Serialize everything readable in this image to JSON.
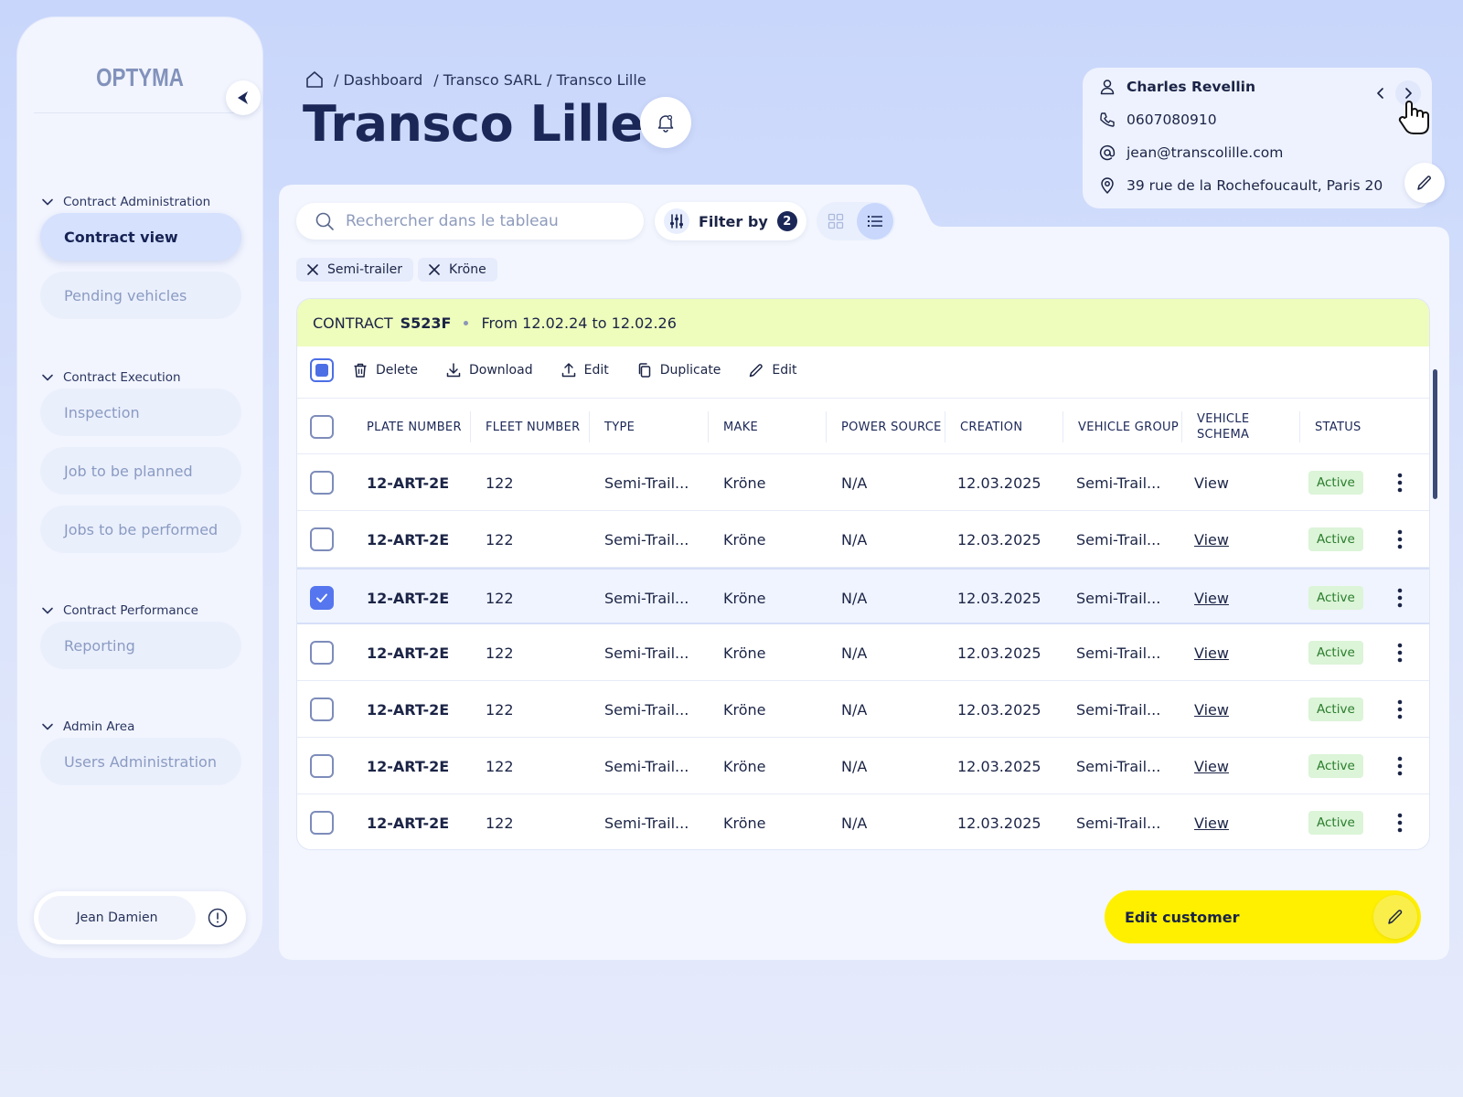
{
  "app": {
    "logo": "OPTYMA"
  },
  "sidebar": {
    "sections": [
      {
        "title": "Contract Administration",
        "items": [
          "Contract view",
          "Pending vehicles"
        ]
      },
      {
        "title": "Contract Execution",
        "items": [
          "Inspection",
          "Job to be planned",
          "Jobs to be performed"
        ]
      },
      {
        "title": "Contract Performance",
        "items": [
          "Reporting"
        ]
      },
      {
        "title": "Admin Area",
        "items": [
          "Users Administration"
        ]
      }
    ],
    "active_item": "Contract view",
    "user": "Jean Damien"
  },
  "breadcrumb": {
    "items": [
      "/ Dashboard",
      "/ Transco SARL",
      "/ Transco Lille"
    ]
  },
  "page": {
    "title": "Transco Lille"
  },
  "contact": {
    "name": "Charles Revellin",
    "phone": "0607080910",
    "email": "jean@transcolille.com",
    "address": "39 rue de la Rochefoucault, Paris 20"
  },
  "search": {
    "placeholder": "Rechercher dans le tableau"
  },
  "filter": {
    "label": "Filter by",
    "count": "2"
  },
  "chips": [
    "Semi-trailer",
    "Kröne"
  ],
  "contract": {
    "prefix": "CONTRACT",
    "code": "S523F",
    "period": "From 12.02.24 to 12.02.26"
  },
  "toolbar": {
    "actions": [
      "Delete",
      "Download",
      "Edit",
      "Duplicate",
      "Edit"
    ]
  },
  "table": {
    "columns": [
      "PLATE NUMBER",
      "FLEET NUMBER",
      "TYPE",
      "MAKE",
      "POWER SOURCE",
      "CREATION",
      "VEHICLE GROUP",
      "VEHICLE SCHEMA",
      "STATUS"
    ],
    "rows": [
      {
        "checked": false,
        "plate": "12-ART-2E",
        "fleet": "122",
        "type": "Semi-Trail...",
        "make": "Kröne",
        "power": "N/A",
        "creation": "12.03.2025",
        "group": "Semi-Trail...",
        "schema": "View",
        "status": "Active"
      },
      {
        "checked": false,
        "plate": "12-ART-2E",
        "fleet": "122",
        "type": "Semi-Trail...",
        "make": "Kröne",
        "power": "N/A",
        "creation": "12.03.2025",
        "group": "Semi-Trail...",
        "schema": "View",
        "status": "Active"
      },
      {
        "checked": true,
        "plate": "12-ART-2E",
        "fleet": "122",
        "type": "Semi-Trail...",
        "make": "Kröne",
        "power": "N/A",
        "creation": "12.03.2025",
        "group": "Semi-Trail...",
        "schema": "View",
        "status": "Active"
      },
      {
        "checked": false,
        "plate": "12-ART-2E",
        "fleet": "122",
        "type": "Semi-Trail...",
        "make": "Kröne",
        "power": "N/A",
        "creation": "12.03.2025",
        "group": "Semi-Trail...",
        "schema": "View",
        "status": "Active"
      },
      {
        "checked": false,
        "plate": "12-ART-2E",
        "fleet": "122",
        "type": "Semi-Trail...",
        "make": "Kröne",
        "power": "N/A",
        "creation": "12.03.2025",
        "group": "Semi-Trail...",
        "schema": "View",
        "status": "Active"
      },
      {
        "checked": false,
        "plate": "12-ART-2E",
        "fleet": "122",
        "type": "Semi-Trail...",
        "make": "Kröne",
        "power": "N/A",
        "creation": "12.03.2025",
        "group": "Semi-Trail...",
        "schema": "View",
        "status": "Active"
      },
      {
        "checked": false,
        "plate": "12-ART-2E",
        "fleet": "122",
        "type": "Semi-Trail...",
        "make": "Kröne",
        "power": "N/A",
        "creation": "12.03.2025",
        "group": "Semi-Trail...",
        "schema": "View",
        "status": "Active"
      }
    ]
  },
  "actions": {
    "edit_customer": "Edit customer"
  },
  "colors": {
    "accent": "#5576ee",
    "highlight": "#fff000",
    "contract_bar": "#eefcbc",
    "status_active_bg": "#dcf4d8",
    "status_active_text": "#2a7d2c"
  }
}
